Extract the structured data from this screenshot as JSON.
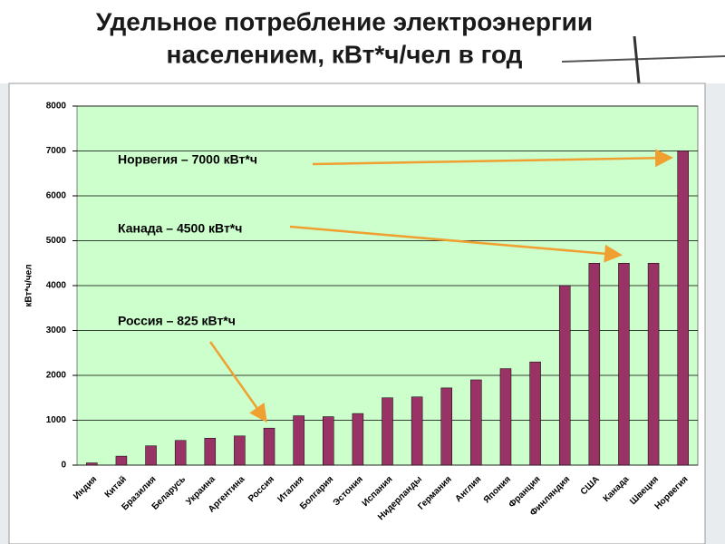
{
  "chart_data": {
    "type": "bar",
    "title": [
      "Удельное потребление электроэнергии",
      "населением, кВт*ч/чел в год"
    ],
    "y_label": "кВт*ч/чел",
    "categories": [
      "Индия",
      "Китай",
      "Бразилия",
      "Беларусь",
      "Украина",
      "Аргентина",
      "Россия",
      "Италия",
      "Болгария",
      "Эстония",
      "Испания",
      "Нидерланды",
      "Германия",
      "Англия",
      "Япония",
      "Франция",
      "Финляндия",
      "США",
      "Канада",
      "Швеция",
      "Норвегия"
    ],
    "values": [
      50,
      200,
      430,
      550,
      600,
      650,
      825,
      1100,
      1080,
      1150,
      1500,
      1520,
      1720,
      1900,
      2150,
      2300,
      4000,
      4500,
      4500,
      4500,
      7000
    ],
    "color": "#993366",
    "ylim": [
      0,
      8000
    ],
    "yticks": [
      0,
      1000,
      2000,
      3000,
      4000,
      5000,
      6000,
      7000,
      8000
    ],
    "grid": true,
    "annotations": [
      "Норвегия – 7000 кВт*ч",
      "Канада – 4500 кВт*ч",
      "Россия – 825 кВт*ч"
    ]
  }
}
